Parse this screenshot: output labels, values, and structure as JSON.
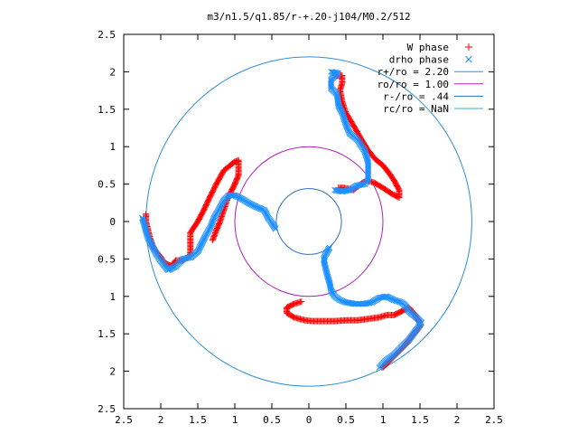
{
  "chart_data": {
    "type": "scatter",
    "title": "m3/n1.5/q1.85/r-+.20-j104/M0.2/512",
    "xlabel": "",
    "ylabel": "",
    "xlim": [
      -2.5,
      2.5
    ],
    "ylim": [
      -2.5,
      2.5
    ],
    "x_ticks": [
      -2.5,
      -2,
      -1.5,
      -1,
      -0.5,
      0,
      0.5,
      1,
      1.5,
      2,
      2.5
    ],
    "y_ticks": [
      2.5,
      2,
      1.5,
      1,
      0.5,
      0,
      -0.5,
      -1,
      -1.5,
      -2,
      -2.5
    ],
    "x_tick_labels": [
      "2.5",
      "2",
      "1.5",
      "1",
      "0.5",
      "0",
      "0.5",
      "1",
      "1.5",
      "2",
      "2.5"
    ],
    "y_tick_labels": [
      "2.5",
      "2",
      "1.5",
      "1",
      "0.5",
      "0",
      "0.5",
      "1",
      "1.5",
      "2",
      "2.5"
    ],
    "grid": false,
    "legend_position": "top-right",
    "circles": [
      {
        "name": "r+/ro = 2.20",
        "radius": 2.2,
        "color": "#2b8fd6"
      },
      {
        "name": "ro/ro = 1.00",
        "radius": 1.0,
        "color": "#b020b8"
      },
      {
        "name": "r-/ro = .44",
        "radius": 0.44,
        "color": "#2a6fc4"
      },
      {
        "name": "rc/ro = NaN",
        "radius": null,
        "color": "#22b6d6"
      }
    ],
    "series": [
      {
        "name": "W phase",
        "marker": "+",
        "color": "#ff0000",
        "arms": [
          [
            [
              -2.2,
              0.1
            ],
            [
              -2.2,
              0.0
            ],
            [
              -2.15,
              -0.2
            ],
            [
              -2.1,
              -0.35
            ],
            [
              -2.02,
              -0.45
            ],
            [
              -1.95,
              -0.55
            ],
            [
              -1.85,
              -0.6
            ],
            [
              -1.8,
              -0.52
            ],
            [
              -1.7,
              -0.52
            ],
            [
              -1.6,
              -0.45
            ],
            [
              -1.6,
              -0.3
            ],
            [
              -1.6,
              -0.15
            ],
            [
              -1.5,
              0.0
            ],
            [
              -1.42,
              0.15
            ],
            [
              -1.35,
              0.3
            ],
            [
              -1.25,
              0.5
            ],
            [
              -1.15,
              0.68
            ],
            [
              -1.0,
              0.8
            ],
            [
              -0.95,
              0.82
            ],
            [
              -0.95,
              0.75
            ],
            [
              -0.95,
              0.62
            ],
            [
              -1.0,
              0.5
            ],
            [
              -1.05,
              0.4
            ],
            [
              -1.1,
              0.3
            ],
            [
              -1.15,
              0.15
            ],
            [
              -1.2,
              0.0
            ],
            [
              -1.25,
              -0.12
            ],
            [
              -1.3,
              -0.25
            ]
          ],
          [
            [
              0.35,
              1.95
            ],
            [
              0.45,
              1.95
            ],
            [
              0.45,
              1.85
            ],
            [
              0.42,
              1.75
            ],
            [
              0.45,
              1.6
            ],
            [
              0.5,
              1.45
            ],
            [
              0.58,
              1.32
            ],
            [
              0.65,
              1.2
            ],
            [
              0.72,
              1.08
            ],
            [
              0.8,
              0.95
            ],
            [
              0.9,
              0.83
            ],
            [
              1.0,
              0.75
            ],
            [
              1.08,
              0.65
            ],
            [
              1.15,
              0.55
            ],
            [
              1.22,
              0.42
            ],
            [
              1.22,
              0.32
            ],
            [
              1.12,
              0.37
            ],
            [
              1.0,
              0.45
            ],
            [
              0.88,
              0.52
            ],
            [
              0.78,
              0.55
            ],
            [
              0.7,
              0.5
            ],
            [
              0.6,
              0.42
            ],
            [
              0.48,
              0.45
            ],
            [
              0.4,
              0.45
            ]
          ],
          [
            [
              1.0,
              -1.95
            ],
            [
              1.1,
              -1.85
            ],
            [
              1.2,
              -1.75
            ],
            [
              1.3,
              -1.65
            ],
            [
              1.4,
              -1.52
            ],
            [
              1.5,
              -1.4
            ],
            [
              1.5,
              -1.35
            ],
            [
              1.4,
              -1.2
            ],
            [
              1.35,
              -1.15
            ],
            [
              1.25,
              -1.2
            ],
            [
              1.15,
              -1.25
            ],
            [
              1.05,
              -1.25
            ],
            [
              0.95,
              -1.28
            ],
            [
              0.8,
              -1.3
            ],
            [
              0.65,
              -1.32
            ],
            [
              0.5,
              -1.32
            ],
            [
              0.35,
              -1.33
            ],
            [
              0.2,
              -1.33
            ],
            [
              0.05,
              -1.33
            ],
            [
              -0.05,
              -1.32
            ],
            [
              -0.2,
              -1.28
            ],
            [
              -0.3,
              -1.22
            ],
            [
              -0.3,
              -1.15
            ],
            [
              -0.2,
              -1.1
            ],
            [
              -0.1,
              -1.07
            ]
          ]
        ]
      },
      {
        "name": "drho phase",
        "marker": "x",
        "color": "#1e90ff",
        "arms": [
          [
            [
              -2.25,
              0.05
            ],
            [
              -2.22,
              -0.05
            ],
            [
              -2.18,
              -0.2
            ],
            [
              -2.12,
              -0.32
            ],
            [
              -2.05,
              -0.45
            ],
            [
              -1.98,
              -0.55
            ],
            [
              -1.9,
              -0.65
            ],
            [
              -1.8,
              -0.6
            ],
            [
              -1.75,
              -0.55
            ],
            [
              -1.7,
              -0.5
            ],
            [
              -1.6,
              -0.48
            ],
            [
              -1.5,
              -0.4
            ],
            [
              -1.45,
              -0.3
            ],
            [
              -1.4,
              -0.2
            ],
            [
              -1.33,
              -0.08
            ],
            [
              -1.28,
              0.05
            ],
            [
              -1.22,
              0.15
            ],
            [
              -1.15,
              0.28
            ],
            [
              -1.08,
              0.35
            ],
            [
              -1.0,
              0.35
            ],
            [
              -0.9,
              0.3
            ],
            [
              -0.82,
              0.25
            ],
            [
              -0.72,
              0.2
            ],
            [
              -0.6,
              0.15
            ],
            [
              -0.55,
              0.05
            ],
            [
              -0.5,
              -0.02
            ],
            [
              -0.45,
              -0.1
            ]
          ],
          [
            [
              0.3,
              2.0
            ],
            [
              0.4,
              1.98
            ],
            [
              0.3,
              1.9
            ],
            [
              0.3,
              1.78
            ],
            [
              0.38,
              1.7
            ],
            [
              0.4,
              1.55
            ],
            [
              0.45,
              1.45
            ],
            [
              0.5,
              1.3
            ],
            [
              0.55,
              1.18
            ],
            [
              0.65,
              1.1
            ],
            [
              0.75,
              0.95
            ],
            [
              0.8,
              0.8
            ],
            [
              0.8,
              0.68
            ],
            [
              0.8,
              0.55
            ],
            [
              0.75,
              0.5
            ],
            [
              0.65,
              0.48
            ],
            [
              0.55,
              0.42
            ],
            [
              0.45,
              0.4
            ],
            [
              0.35,
              0.42
            ]
          ],
          [
            [
              0.95,
              -1.95
            ],
            [
              1.05,
              -1.85
            ],
            [
              1.15,
              -1.78
            ],
            [
              1.25,
              -1.68
            ],
            [
              1.35,
              -1.58
            ],
            [
              1.45,
              -1.45
            ],
            [
              1.52,
              -1.35
            ],
            [
              1.45,
              -1.28
            ],
            [
              1.35,
              -1.2
            ],
            [
              1.3,
              -1.12
            ],
            [
              1.25,
              -1.08
            ],
            [
              1.15,
              -1.05
            ],
            [
              1.05,
              -1.0
            ],
            [
              0.95,
              -1.02
            ],
            [
              0.85,
              -1.08
            ],
            [
              0.75,
              -1.1
            ],
            [
              0.62,
              -1.1
            ],
            [
              0.5,
              -1.08
            ],
            [
              0.42,
              -1.05
            ],
            [
              0.35,
              -1.0
            ],
            [
              0.3,
              -0.92
            ],
            [
              0.28,
              -0.82
            ],
            [
              0.25,
              -0.72
            ],
            [
              0.22,
              -0.6
            ],
            [
              0.2,
              -0.5
            ],
            [
              0.22,
              -0.45
            ],
            [
              0.28,
              -0.35
            ]
          ]
        ]
      }
    ]
  }
}
